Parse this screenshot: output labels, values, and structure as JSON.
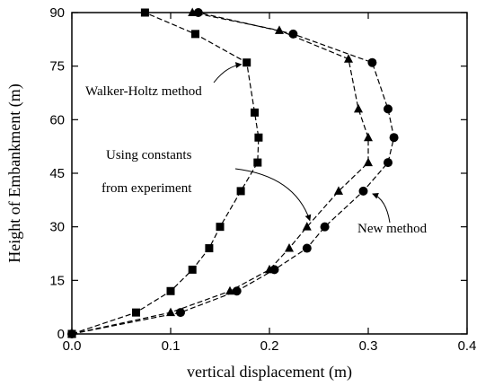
{
  "chart_data": {
    "type": "line",
    "xlabel": "vertical displacement (m)",
    "ylabel": "Height of Embankment (m)",
    "xlim": [
      0.0,
      0.4
    ],
    "ylim": [
      0,
      90
    ],
    "xticks": [
      "0.0",
      "0.1",
      "0.2",
      "0.3",
      "0.4"
    ],
    "yticks": [
      "0",
      "15",
      "30",
      "45",
      "60",
      "75",
      "90"
    ],
    "grid": false,
    "series": [
      {
        "marker": "square",
        "points": [
          [
            0.0,
            0
          ],
          [
            0.065,
            6
          ],
          [
            0.1,
            12
          ],
          [
            0.122,
            18
          ],
          [
            0.139,
            24
          ],
          [
            0.15,
            30
          ],
          [
            0.171,
            40
          ],
          [
            0.188,
            48
          ],
          [
            0.189,
            55
          ],
          [
            0.185,
            62
          ],
          [
            0.177,
            76
          ],
          [
            0.125,
            84
          ],
          [
            0.074,
            90
          ]
        ]
      },
      {
        "marker": "triangle",
        "points": [
          [
            0.0,
            0
          ],
          [
            0.1,
            6
          ],
          [
            0.16,
            12
          ],
          [
            0.2,
            18
          ],
          [
            0.22,
            24
          ],
          [
            0.238,
            30
          ],
          [
            0.27,
            40
          ],
          [
            0.3,
            48
          ],
          [
            0.3,
            55
          ],
          [
            0.29,
            63
          ],
          [
            0.28,
            77
          ],
          [
            0.21,
            85
          ],
          [
            0.122,
            90
          ]
        ]
      },
      {
        "marker": "circle",
        "points": [
          [
            0.0,
            0
          ],
          [
            0.11,
            6
          ],
          [
            0.167,
            12
          ],
          [
            0.205,
            18
          ],
          [
            0.238,
            24
          ],
          [
            0.256,
            30
          ],
          [
            0.295,
            40
          ],
          [
            0.32,
            48
          ],
          [
            0.326,
            55
          ],
          [
            0.32,
            63
          ],
          [
            0.304,
            76
          ],
          [
            0.224,
            84
          ],
          [
            0.128,
            90
          ]
        ]
      }
    ],
    "annotations": [
      {
        "lines": [
          "Walker-Holtz method"
        ],
        "target": [
          0.177,
          76
        ]
      },
      {
        "lines": [
          "Using constants",
          "from experiment"
        ],
        "target": [
          0.24,
          30
        ]
      },
      {
        "lines": [
          "New method"
        ],
        "target": [
          0.298,
          40
        ]
      }
    ]
  }
}
